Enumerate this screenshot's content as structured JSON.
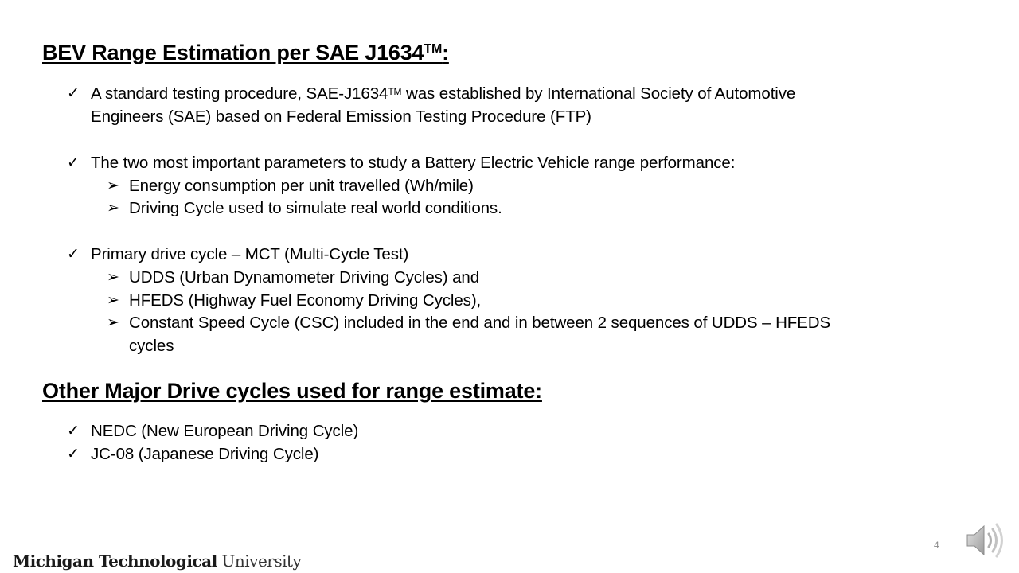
{
  "slide": {
    "heading1": {
      "text": "BEV Range Estimation per SAE J1634",
      "sup": "TM",
      "colon": ":"
    },
    "bullet1": {
      "line1_pre": "A standard testing procedure, SAE-J1634",
      "line1_sup": "TM",
      "line1_post": " was established by International Society of Automotive",
      "line2": "Engineers (SAE) based on Federal Emission Testing Procedure (FTP)"
    },
    "bullet2": {
      "text": "The two most important parameters to study a Battery Electric Vehicle range performance:",
      "sub": [
        "Energy consumption per unit travelled (Wh/mile)",
        "Driving Cycle used to simulate real world conditions."
      ]
    },
    "bullet3": {
      "text": "Primary drive cycle – MCT (Multi-Cycle Test)",
      "sub": [
        "UDDS (Urban Dynamometer Driving Cycles) and",
        "HFEDS (Highway Fuel Economy Driving Cycles),",
        "Constant Speed Cycle (CSC) included in the end and in between 2 sequences of UDDS – HFEDS"
      ],
      "sub_cont": "cycles"
    },
    "heading2": "Other Major Drive cycles used for range estimate:",
    "bullet4": "NEDC (New European Driving Cycle)",
    "bullet5": "JC-08 (Japanese Driving Cycle)",
    "check_glyph": "✓",
    "arrow_glyph": "➢"
  },
  "footer": {
    "logo_bold": "Michigan Technological",
    "logo_light": " University",
    "page_number": "4",
    "speaker_icon": "speaker-icon"
  }
}
